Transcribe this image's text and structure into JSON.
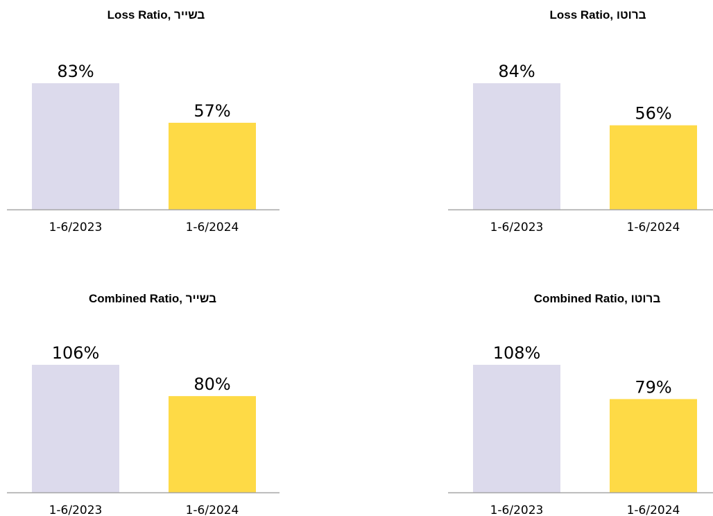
{
  "chart_data": [
    {
      "type": "bar",
      "title": "Loss Ratio, בשייר",
      "categories": [
        "1-6/2023",
        "1-6/2024"
      ],
      "values": [
        83,
        57
      ],
      "value_labels": [
        "83%",
        "57%"
      ],
      "ylim": [
        0,
        100
      ],
      "grid": false,
      "colors": [
        "#DCDAEC",
        "#FEDA46"
      ]
    },
    {
      "type": "bar",
      "title": "Loss Ratio, ברוטו",
      "categories": [
        "1-6/2023",
        "1-6/2024"
      ],
      "values": [
        84,
        56
      ],
      "value_labels": [
        "84%",
        "56%"
      ],
      "ylim": [
        0,
        100
      ],
      "grid": false,
      "colors": [
        "#DCDAEC",
        "#FEDA46"
      ]
    },
    {
      "type": "bar",
      "title": "Combined Ratio, בשייר",
      "categories": [
        "1-6/2023",
        "1-6/2024"
      ],
      "values": [
        106,
        80
      ],
      "value_labels": [
        "106%",
        "80%"
      ],
      "ylim": [
        0,
        130
      ],
      "grid": false,
      "colors": [
        "#DCDAEC",
        "#FEDA46"
      ]
    },
    {
      "type": "bar",
      "title": "Combined Ratio, ברוטו",
      "categories": [
        "1-6/2023",
        "1-6/2024"
      ],
      "values": [
        108,
        79
      ],
      "value_labels": [
        "108%",
        "79%"
      ],
      "ylim": [
        0,
        130
      ],
      "grid": false,
      "colors": [
        "#DCDAEC",
        "#FEDA46"
      ]
    }
  ]
}
